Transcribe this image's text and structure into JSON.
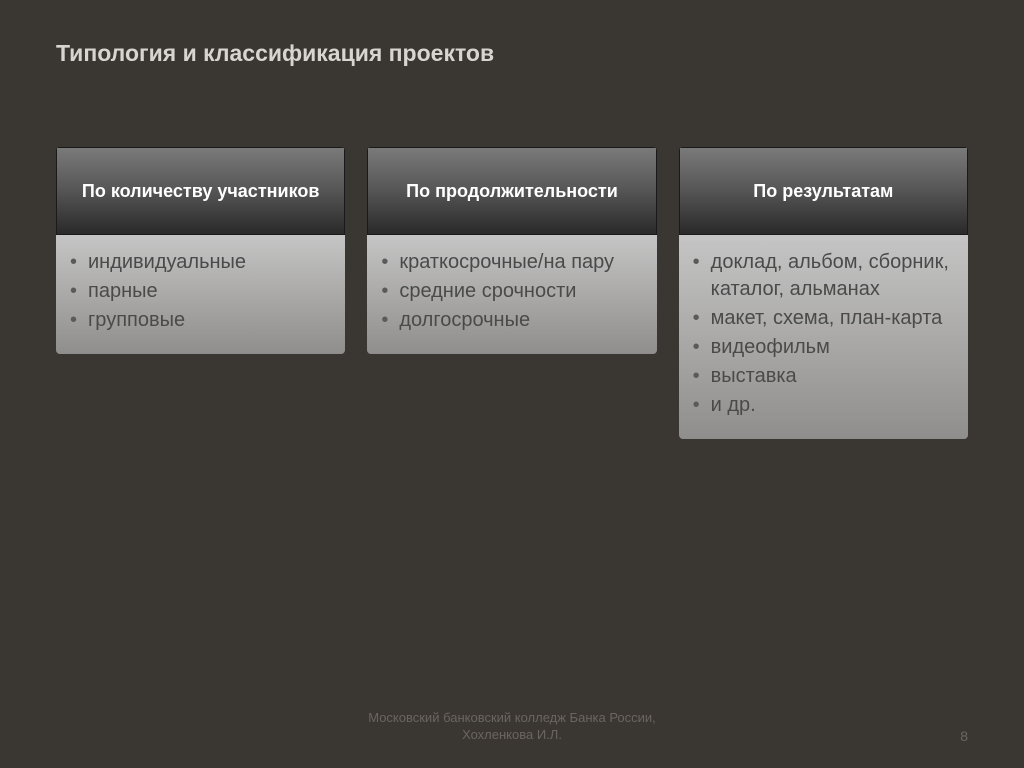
{
  "slide": {
    "title": "Типология и классификация проектов",
    "background_color": "#3a3632",
    "title_color": "#d8d4cf",
    "title_fontsize": 23
  },
  "columns": [
    {
      "header": "По количеству участников",
      "items": [
        "индивидуальные",
        "парные",
        "групповые"
      ]
    },
    {
      "header": "По продолжительности",
      "items": [
        "краткосрочные/на пару",
        "средние срочности",
        "долгосрочные"
      ]
    },
    {
      "header": "По результатам",
      "items": [
        "доклад, альбом, сборник, каталог, альманах",
        "макет, схема, план-карта",
        "видеофильм",
        "выставка",
        "и др."
      ]
    }
  ],
  "styling": {
    "header_gradient_top": "#7a7a7a",
    "header_gradient_mid": "#555555",
    "header_gradient_bottom": "#2a2a2a",
    "header_text_color": "#ffffff",
    "header_fontsize": 18,
    "body_gradient_top": "#c5c5c5",
    "body_gradient_bottom": "#908e8c",
    "body_text_color": "#4a4a4a",
    "body_fontsize": 20,
    "column_gap": 22,
    "column_border_radius": 4
  },
  "footer": {
    "line1": "Московский банковский колледж Банка России,",
    "line2": "Хохленкова И.Л.",
    "color": "#6b6560",
    "fontsize": 13
  },
  "page_number": "8"
}
